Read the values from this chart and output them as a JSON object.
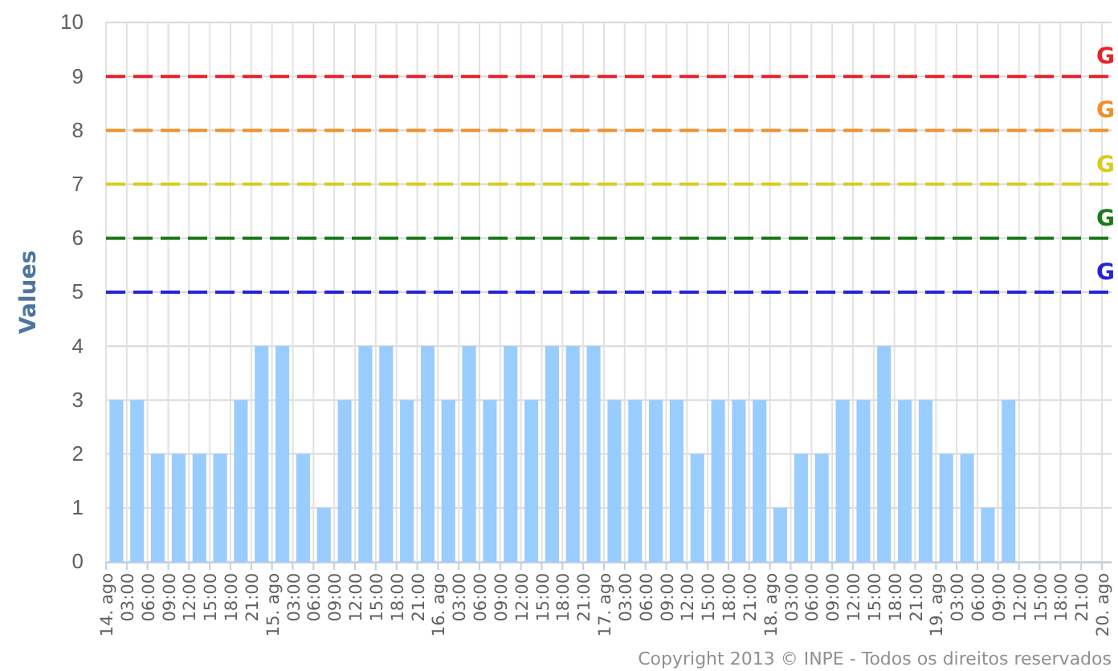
{
  "chart_data": {
    "type": "bar",
    "ylabel": "Values",
    "categories": [
      "14. ago",
      "03:00",
      "06:00",
      "09:00",
      "12:00",
      "15:00",
      "18:00",
      "21:00",
      "15. ago",
      "03:00",
      "06:00",
      "09:00",
      "12:00",
      "15:00",
      "18:00",
      "21:00",
      "16. ago",
      "03:00",
      "06:00",
      "09:00",
      "12:00",
      "15:00",
      "18:00",
      "21:00",
      "17. ago",
      "03:00",
      "06:00",
      "09:00",
      "12:00",
      "15:00",
      "18:00",
      "21:00",
      "18. ago",
      "03:00",
      "06:00",
      "09:00",
      "12:00",
      "15:00",
      "18:00",
      "21:00",
      "19. ago",
      "03:00",
      "06:00",
      "09:00",
      "12:00",
      "15:00",
      "18:00",
      "21:00",
      "20. ago"
    ],
    "values": [
      3,
      3,
      2,
      2,
      2,
      2,
      3,
      4,
      4,
      2,
      1,
      3,
      4,
      4,
      3,
      4,
      3,
      4,
      3,
      4,
      3,
      4,
      4,
      4,
      3,
      3,
      3,
      3,
      2,
      3,
      3,
      3,
      1,
      2,
      2,
      3,
      3,
      4,
      3,
      3,
      2,
      2,
      1,
      3,
      null,
      null,
      null,
      null,
      null
    ],
    "color": "#99ccff",
    "ylim": [
      0,
      10
    ],
    "yticks": [
      0,
      1,
      2,
      3,
      4,
      5,
      6,
      7,
      8,
      9,
      10
    ],
    "grid": true,
    "ref_lines": [
      {
        "axis": "y",
        "value": 9,
        "label": "G",
        "color": "#e8222a",
        "line_style": "dashed"
      },
      {
        "axis": "y",
        "value": 8,
        "label": "G",
        "color": "#f0902a",
        "line_style": "dashed"
      },
      {
        "axis": "y",
        "value": 7,
        "label": "G",
        "color": "#d8cc1e",
        "line_style": "dashed"
      },
      {
        "axis": "y",
        "value": 6,
        "label": "G",
        "color": "#1c7a1c",
        "line_style": "dashed"
      },
      {
        "axis": "y",
        "value": 5,
        "label": "G",
        "color": "#2424d8",
        "line_style": "dashed"
      }
    ],
    "annotations": [
      "Copyright 2013 © INPE - Todos os direitos reservados"
    ]
  }
}
